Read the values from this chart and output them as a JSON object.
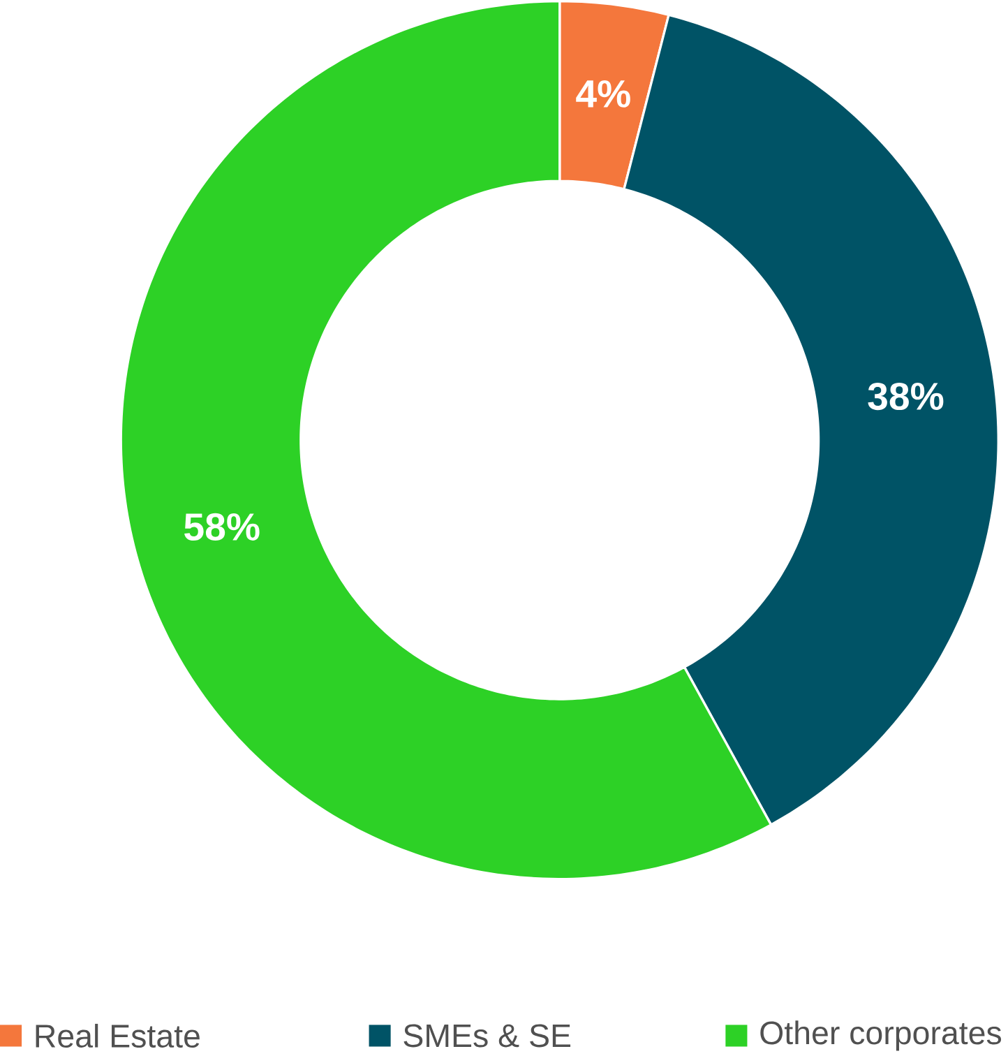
{
  "chart_data": {
    "type": "donut",
    "categories": [
      "Real Estate",
      "SMEs & SE",
      "Other corporates"
    ],
    "values": [
      4,
      38,
      58
    ],
    "value_labels": [
      "4%",
      "38%",
      "58%"
    ],
    "colors": [
      "#f4773c",
      "#005366",
      "#2dd126"
    ],
    "legend": "bottom"
  }
}
